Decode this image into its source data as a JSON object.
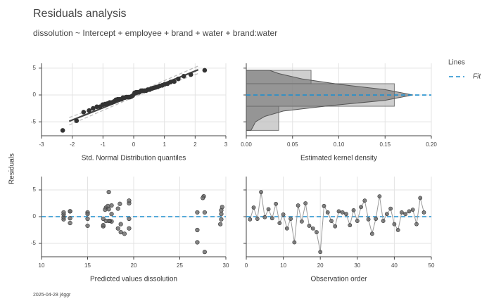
{
  "header": {
    "title": "Residuals analysis",
    "subtitle": "dissolution ~ Intercept + employee + brand + water + brand:water"
  },
  "ylabel": "Residuals",
  "footer": "2025-04-28 j4ggr",
  "chart_data": [
    {
      "type": "qq",
      "xlabel": "Std. Normal Distribution quantiles",
      "color": "#333333",
      "grid": true,
      "x": [
        -2.31,
        -1.86,
        -1.63,
        -1.45,
        -1.32,
        -1.2,
        -1.1,
        -1.01,
        -0.93,
        -0.85,
        -0.78,
        -0.71,
        -0.64,
        -0.58,
        -0.52,
        -0.46,
        -0.4,
        -0.35,
        -0.29,
        -0.24,
        -0.18,
        -0.13,
        -0.08,
        -0.03,
        0.03,
        0.08,
        0.13,
        0.18,
        0.24,
        0.29,
        0.35,
        0.4,
        0.46,
        0.52,
        0.58,
        0.64,
        0.71,
        0.78,
        0.85,
        0.93,
        1.01,
        1.1,
        1.2,
        1.32,
        1.45,
        1.63,
        1.86,
        2.31
      ],
      "values": [
        -6.6,
        -4.8,
        -3.2,
        -2.9,
        -2.5,
        -2.2,
        -2.2,
        -1.8,
        -1.7,
        -1.6,
        -1.4,
        -1.4,
        -1.2,
        -0.9,
        -0.8,
        -0.8,
        -0.8,
        -0.5,
        -0.5,
        -0.4,
        -0.4,
        -0.4,
        -0.3,
        -0.1,
        0.4,
        0.5,
        0.5,
        0.5,
        0.8,
        0.8,
        0.8,
        0.8,
        1.0,
        1.0,
        1.2,
        1.3,
        1.4,
        1.5,
        1.7,
        1.8,
        2.0,
        2.1,
        2.4,
        2.5,
        3.0,
        3.5,
        3.8,
        4.6
      ],
      "fit": {
        "x": [
          -2.1,
          2.1
        ],
        "values": [
          -4.9,
          4.7
        ],
        "color": "#444444"
      },
      "band": {
        "x": [
          -2.1,
          0,
          2.1
        ],
        "lower": [
          -5.6,
          -0.4,
          4.0
        ],
        "upper": [
          -4.2,
          0.2,
          5.4
        ],
        "color": "#bbbbbb"
      },
      "xlim": [
        -3,
        3
      ],
      "xticks": [
        -3,
        -2,
        -1,
        0,
        1,
        2,
        3
      ],
      "ylim": [
        -7.6,
        5.9
      ],
      "yticks": [
        -5,
        0,
        5
      ]
    },
    {
      "type": "density",
      "xlabel": "Estimated kernel density",
      "grid": true,
      "bins": [
        -6.6,
        -2.1,
        2.1,
        4.6
      ],
      "hist": [
        0.035,
        0.16,
        0.07
      ],
      "hist_color": "#bbbbbb",
      "kde": {
        "y": [
          -6.6,
          -6.0,
          -5.0,
          -4.0,
          -3.0,
          -2.0,
          -1.0,
          0,
          1.0,
          2.0,
          3.0,
          4.0,
          4.6
        ],
        "density": [
          0.005,
          0.007,
          0.01,
          0.02,
          0.04,
          0.09,
          0.15,
          0.18,
          0.15,
          0.1,
          0.06,
          0.035,
          0.025
        ],
        "color": "#666666"
      },
      "reference": {
        "name": "Fit",
        "value": 0,
        "color": "#1f8ecd"
      },
      "legend": {
        "title": "Lines",
        "position": "right"
      },
      "xlim": [
        0,
        0.2
      ],
      "xticks": [
        {
          "value": 0,
          "label": "0.00"
        },
        {
          "value": 0.05,
          "label": "0.05"
        },
        {
          "value": 0.1,
          "label": "0.10"
        },
        {
          "value": 0.15,
          "label": "0.15"
        },
        {
          "value": 0.2,
          "label": "0.20"
        }
      ],
      "ylim": [
        -7.6,
        5.9
      ],
      "yticks": [
        -5,
        0,
        5
      ]
    },
    {
      "type": "scatter",
      "xlabel": "Predicted values dissolution",
      "color": "#666666",
      "grid": true,
      "x": [
        12.4,
        17.0,
        16.7,
        17.3,
        12.4,
        17.3,
        13.1,
        18.5,
        13.1,
        12.4,
        19.5,
        15.0,
        26.9,
        17.6,
        17.6,
        19.5,
        15.0,
        18.3,
        18.6,
        27.7,
        17.2,
        15.0,
        17.4,
        16.7,
        13.1,
        12.4,
        17.6,
        16.7,
        29.5,
        17.3,
        29.6,
        19.5,
        29.5,
        19.0,
        19.5,
        27.6,
        17.0,
        15.0,
        18.3,
        18.6,
        26.9,
        27.7,
        29.5,
        13.1,
        16.9,
        29.4,
        27.5,
        26.9
      ],
      "values": [
        -0.5,
        1.7,
        -0.4,
        4.6,
        -0.1,
        1.4,
        -0.3,
        2.4,
        -1.2,
        0.4,
        -2.2,
        -0.4,
        -4.8,
        2.1,
        -0.9,
        2.5,
        -1.7,
        -2.2,
        -2.9,
        -6.6,
        2.0,
        0.8,
        -0.8,
        -1.8,
        1.0,
        0.8,
        0.5,
        -1.6,
        1.2,
        -0.8,
        1.8,
        3.0,
        -0.5,
        -3.2,
        -0.4,
        3.8,
        -0.8,
        0.5,
        1.5,
        -1.4,
        -2.5,
        0.8,
        0.5,
        1.0,
        1.3,
        -1.4,
        3.5,
        0.8
      ],
      "reference": {
        "value": 0,
        "color": "#1f8ecd"
      },
      "xlim": [
        10,
        30
      ],
      "xticks": [
        10,
        15,
        20,
        25,
        30
      ],
      "ylim": [
        -7.5,
        7.5
      ],
      "yticks": [
        -5,
        0,
        5
      ]
    },
    {
      "type": "line",
      "xlabel": "Observation order",
      "color": "#666666",
      "line_color": "#999999",
      "grid": true,
      "x": [
        1,
        2,
        3,
        4,
        5,
        6,
        7,
        8,
        9,
        10,
        11,
        12,
        13,
        14,
        15,
        16,
        17,
        18,
        19,
        20,
        21,
        22,
        23,
        24,
        25,
        26,
        27,
        28,
        29,
        30,
        31,
        32,
        33,
        34,
        35,
        36,
        37,
        38,
        39,
        40,
        41,
        42,
        43,
        44,
        45,
        46,
        47,
        48
      ],
      "values": [
        -0.5,
        1.7,
        -0.4,
        4.6,
        -0.1,
        1.4,
        -0.3,
        2.4,
        -1.2,
        0.4,
        -2.2,
        -0.4,
        -4.8,
        2.1,
        -0.9,
        2.5,
        -1.7,
        -2.2,
        -2.9,
        -6.6,
        2.0,
        0.8,
        -0.8,
        -1.8,
        1.0,
        0.8,
        0.5,
        -1.6,
        1.2,
        -0.8,
        1.8,
        3.0,
        -0.5,
        -3.2,
        -0.4,
        3.8,
        -0.8,
        0.5,
        1.5,
        -1.4,
        -2.5,
        0.8,
        0.5,
        1.0,
        1.3,
        -1.4,
        3.5,
        0.8
      ],
      "reference": {
        "value": 0,
        "color": "#1f8ecd"
      },
      "xlim": [
        0,
        50
      ],
      "xticks": [
        0,
        10,
        20,
        30,
        40,
        50
      ],
      "ylim": [
        -7.5,
        7.5
      ],
      "yticks": [
        -5,
        0,
        5
      ]
    }
  ]
}
